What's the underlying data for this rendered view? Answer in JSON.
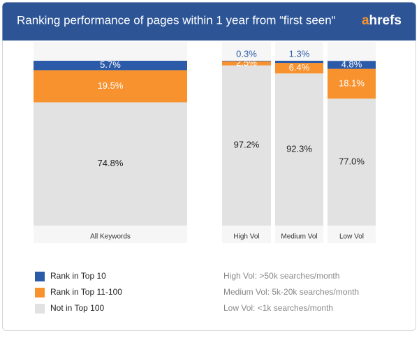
{
  "chart_data": {
    "type": "stacked-bar",
    "title": "Ranking performance of pages within 1 year from “first seen“",
    "logo": "ahrefs",
    "categories": [
      "All Keywords",
      "High Vol",
      "Medium Vol",
      "Low Vol"
    ],
    "series": [
      {
        "name": "Rank in Top 10",
        "color": "#2b5ba8",
        "values": [
          5.7,
          0.3,
          1.3,
          4.8
        ],
        "value_labels": [
          "5.7%",
          "0.3%",
          "1.3%",
          "4.8%"
        ]
      },
      {
        "name": "Rank in Top 11-100",
        "color": "#f7922e",
        "values": [
          19.5,
          2.5,
          6.4,
          18.1
        ],
        "value_labels": [
          "19.5%",
          "2.5%",
          "6.4%",
          "18.1%"
        ]
      },
      {
        "name": "Not in Top 100",
        "color": "#e2e2e2",
        "values": [
          74.8,
          97.2,
          92.3,
          77.0
        ],
        "value_labels": [
          "74.8%",
          "97.2%",
          "92.3%",
          "77.0%"
        ]
      }
    ],
    "ylim": [
      0,
      100
    ],
    "notes": [
      "High Vol: >50k searches/month",
      "Medium Vol: 5k-20k searches/month",
      "Low Vol: <1k searches/month"
    ]
  }
}
